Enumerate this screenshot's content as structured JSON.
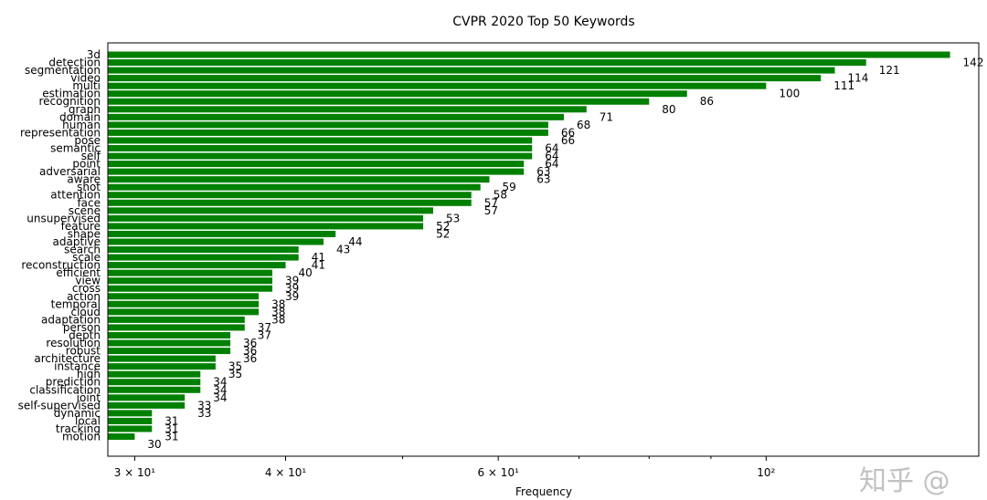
{
  "chart_data": {
    "type": "bar",
    "orientation": "horizontal",
    "title": "CVPR 2020 Top 50 Keywords",
    "xlabel": "Frequency",
    "ylabel": "",
    "xscale": "log",
    "xlim": [
      28.5,
      150
    ],
    "xticks": [
      {
        "value": 30,
        "label": "3 × 10¹"
      },
      {
        "value": 40,
        "label": "4 × 10¹"
      },
      {
        "value": 60,
        "label": "6 × 10¹"
      },
      {
        "value": 100,
        "label": "10²"
      }
    ],
    "bar_color": "#008000",
    "grid": false,
    "legend": "none",
    "categories": [
      "3d",
      "detection",
      "segmentation",
      "video",
      "multi",
      "estimation",
      "recognition",
      "graph",
      "domain",
      "human",
      "representation",
      "pose",
      "semantic",
      "self",
      "point",
      "adversarial",
      "aware",
      "shot",
      "attention",
      "face",
      "scene",
      "unsupervised",
      "feature",
      "shape",
      "adaptive",
      "search",
      "scale",
      "reconstruction",
      "efficient",
      "view",
      "cross",
      "action",
      "temporal",
      "cloud",
      "adaptation",
      "person",
      "depth",
      "resolution",
      "robust",
      "architecture",
      "instance",
      "high",
      "prediction",
      "classification",
      "joint",
      "self-supervised",
      "dynamic",
      "local",
      "tracking",
      "motion"
    ],
    "values": [
      142,
      121,
      114,
      111,
      100,
      86,
      80,
      71,
      68,
      66,
      66,
      64,
      64,
      64,
      63,
      63,
      59,
      58,
      57,
      57,
      53,
      52,
      52,
      44,
      43,
      41,
      41,
      40,
      39,
      39,
      39,
      38,
      38,
      38,
      37,
      37,
      36,
      36,
      36,
      35,
      35,
      34,
      34,
      34,
      33,
      33,
      31,
      31,
      31,
      30
    ]
  },
  "watermark": "知乎 @"
}
